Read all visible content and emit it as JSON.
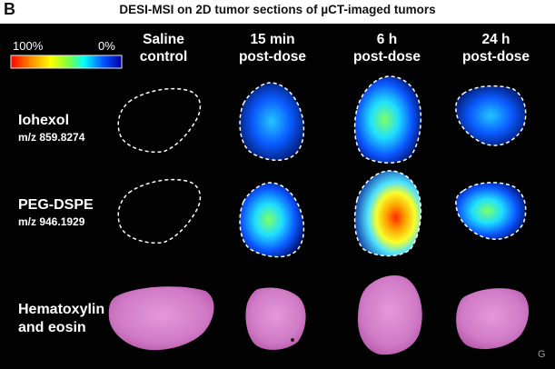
{
  "panel_letter": "B",
  "title": "DESI-MSI on 2D tumor sections of µCT-imaged tumors",
  "colorbar": {
    "max_label": "100%",
    "min_label": "0%"
  },
  "columns": [
    {
      "line1": "Saline",
      "line2": "control"
    },
    {
      "line1": "15 min",
      "line2": "post-dose"
    },
    {
      "line1": "6 h",
      "line2": "post-dose"
    },
    {
      "line1": "24 h",
      "line2": "post-dose"
    }
  ],
  "rows": [
    {
      "name": "Iohexol",
      "mz": "m/z 859.8274"
    },
    {
      "name": "PEG-DSPE",
      "mz": "m/z 946.1929"
    },
    {
      "name_line1": "Hematoxylin",
      "name_line2": "and eosin"
    }
  ],
  "corner_mark": "G",
  "colors": {
    "background": "#020202",
    "outline": "#ffffff",
    "stain": "#d77fcc",
    "colormap": [
      "#ff0000",
      "#ff8c00",
      "#ffff00",
      "#7fff3f",
      "#00ffff",
      "#0050ff",
      "#0000a0"
    ]
  }
}
